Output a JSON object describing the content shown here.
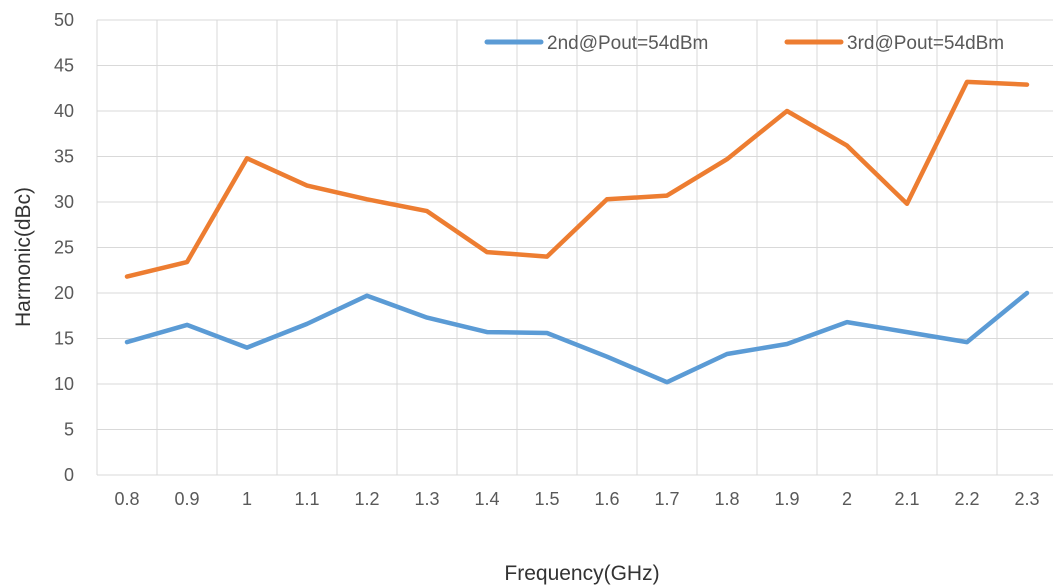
{
  "chart_data": {
    "type": "line",
    "xlabel": "Frequency(GHz)",
    "ylabel": "Harmonic(dBc)",
    "categories": [
      "0.8",
      "0.9",
      "1",
      "1.1",
      "1.2",
      "1.3",
      "1.4",
      "1.5",
      "1.6",
      "1.7",
      "1.8",
      "1.9",
      "2",
      "2.1",
      "2.2",
      "2.3"
    ],
    "ylim": [
      0,
      50
    ],
    "yticks": [
      "0",
      "5",
      "10",
      "15",
      "20",
      "25",
      "30",
      "35",
      "40",
      "45",
      "50"
    ],
    "grid": true,
    "legend_position": "top-right",
    "series": [
      {
        "name": "2nd@Pout=54dBm",
        "color": "#5b9bd5",
        "values": [
          14.6,
          16.5,
          14.0,
          16.6,
          19.7,
          17.3,
          15.7,
          15.6,
          13.0,
          10.2,
          13.3,
          14.4,
          16.8,
          15.7,
          14.6,
          20.0
        ]
      },
      {
        "name": "3rd@Pout=54dBm",
        "color": "#ed7d31",
        "values": [
          21.8,
          23.4,
          34.8,
          31.8,
          30.3,
          29.0,
          24.5,
          24.0,
          30.3,
          30.7,
          34.7,
          40.0,
          36.2,
          29.8,
          43.2,
          42.9
        ]
      }
    ]
  }
}
